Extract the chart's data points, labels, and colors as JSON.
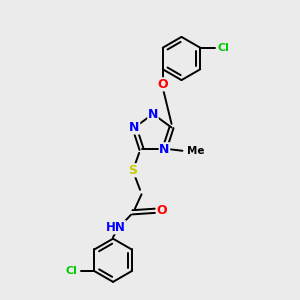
{
  "bg_color": "#ebebeb",
  "atom_colors": {
    "N": "#0000ff",
    "O": "#ff0000",
    "S": "#cccc00",
    "Cl": "#00cc00",
    "C": "#000000",
    "H": "#5a8a8a"
  },
  "bond_color": "#000000",
  "bond_lw": 1.4,
  "font_size": 8.5
}
